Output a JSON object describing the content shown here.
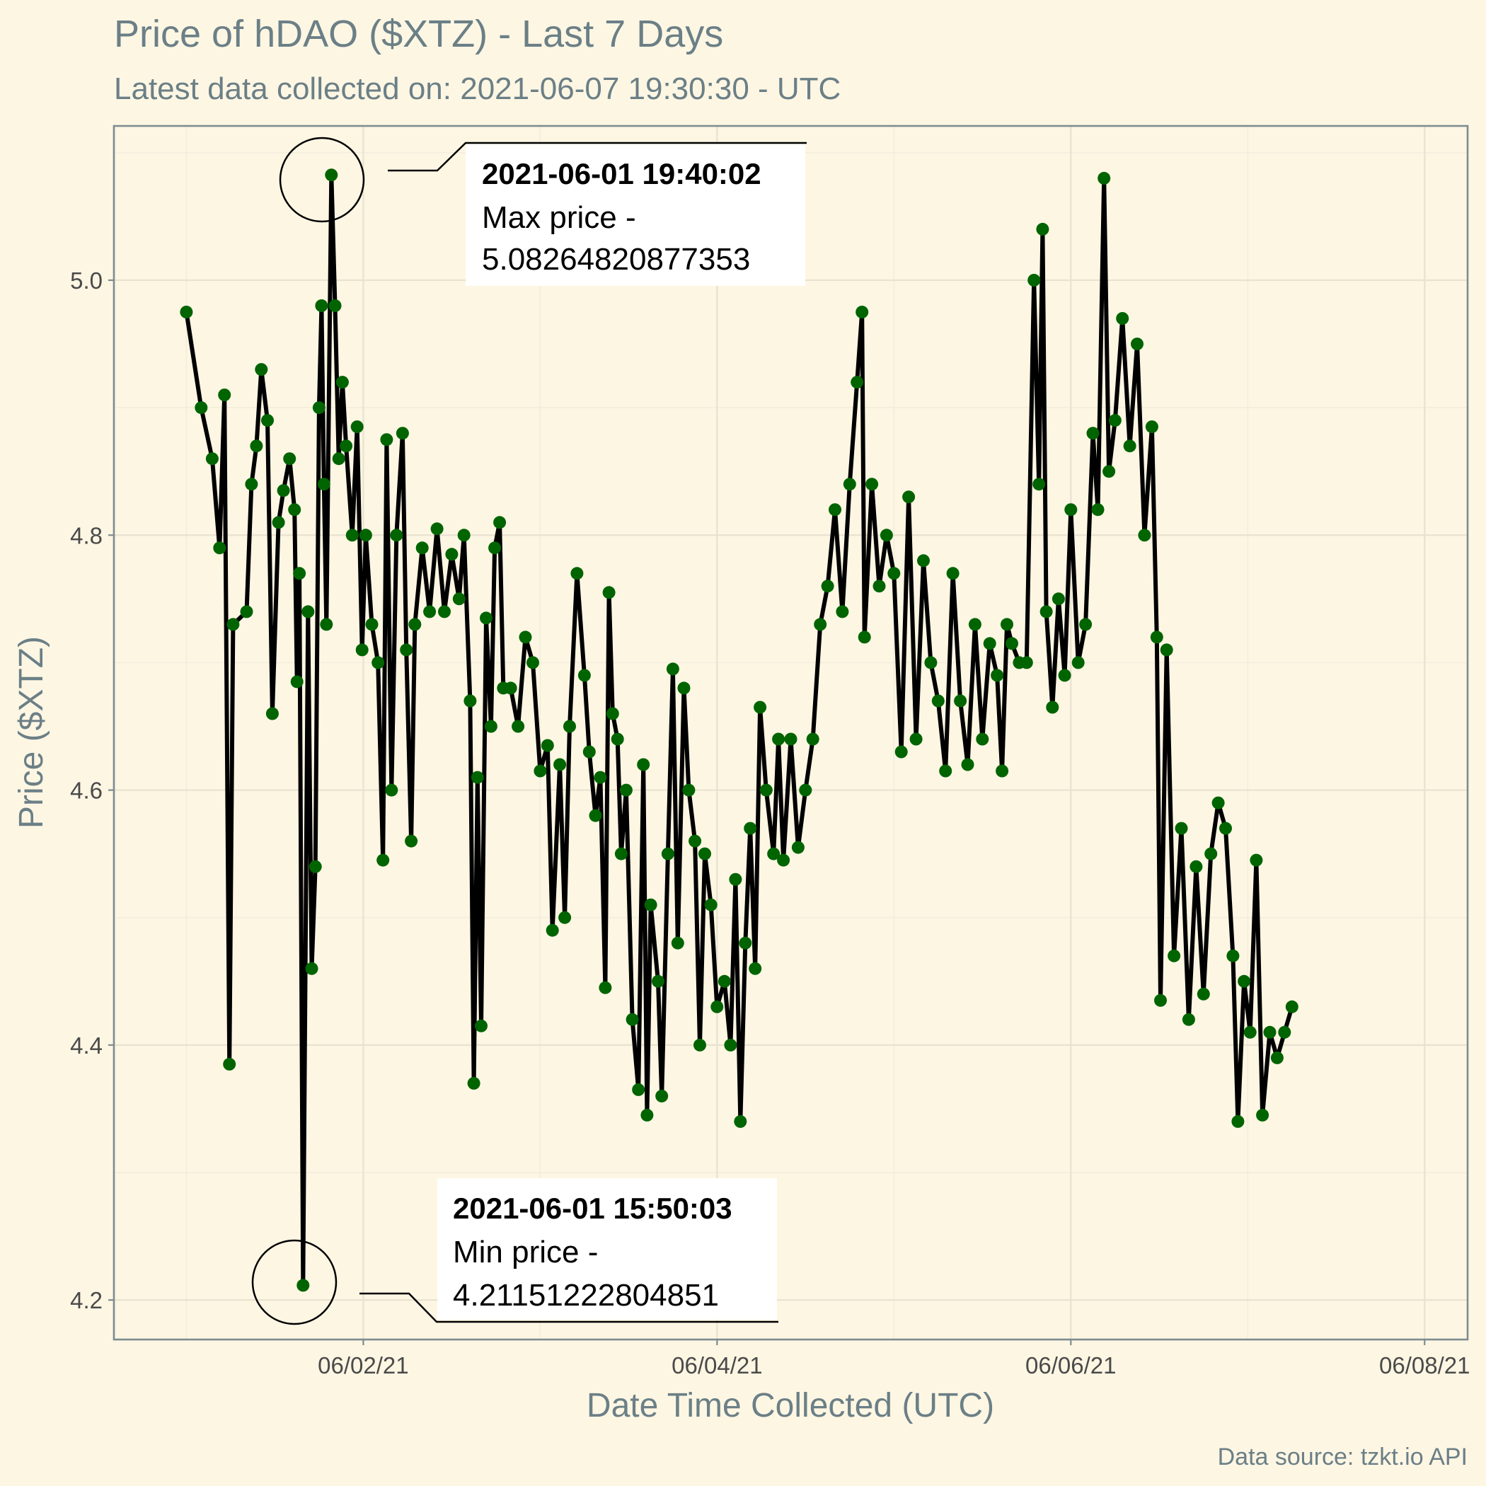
{
  "chart_data": {
    "type": "line",
    "title": "Price of hDAO ($XTZ) - Last 7 Days",
    "subtitle": "Latest data collected on: 2021-06-07 19:30:30  - UTC",
    "xlabel": "Date Time Collected (UTC)",
    "ylabel": "Price ($XTZ)",
    "caption": "Data source: tzkt.io API",
    "x_ticks": [
      {
        "label": "06/02/21",
        "date": "2021-06-02"
      },
      {
        "label": "06/04/21",
        "date": "2021-06-04"
      },
      {
        "label": "06/06/21",
        "date": "2021-06-06"
      },
      {
        "label": "06/08/21",
        "date": "2021-06-08"
      }
    ],
    "y_ticks": [
      "4.2",
      "4.4",
      "4.6",
      "4.8",
      "5.0"
    ],
    "xlim": [
      "2021-05-31T14:10:00",
      "2021-06-08T05:50:00"
    ],
    "ylim": [
      4.169,
      5.121
    ],
    "grid": true,
    "line_color": "#000000",
    "point_color": "#006400",
    "series": [
      {
        "points": [
          [
            "2021-06-01T00:00:00",
            4.975
          ],
          [
            "2021-06-01T02:00:00",
            4.9
          ],
          [
            "2021-06-01T03:30:00",
            4.86
          ],
          [
            "2021-06-01T04:30:00",
            4.79
          ],
          [
            "2021-06-01T05:10:00",
            4.91
          ],
          [
            "2021-06-01T05:50:00",
            4.385
          ],
          [
            "2021-06-01T06:20:00",
            4.73
          ],
          [
            "2021-06-01T08:10:00",
            4.74
          ],
          [
            "2021-06-01T08:50:00",
            4.84
          ],
          [
            "2021-06-01T09:30:00",
            4.87
          ],
          [
            "2021-06-01T10:10:00",
            4.93
          ],
          [
            "2021-06-01T11:00:00",
            4.89
          ],
          [
            "2021-06-01T11:40:00",
            4.66
          ],
          [
            "2021-06-01T12:30:00",
            4.81
          ],
          [
            "2021-06-01T13:10:00",
            4.835
          ],
          [
            "2021-06-01T14:00:00",
            4.86
          ],
          [
            "2021-06-01T14:40:00",
            4.82
          ],
          [
            "2021-06-01T15:00:00",
            4.685
          ],
          [
            "2021-06-01T15:20:00",
            4.77
          ],
          [
            "2021-06-01T15:50:03",
            4.2115
          ],
          [
            "2021-06-01T16:30:00",
            4.74
          ],
          [
            "2021-06-01T17:00:00",
            4.46
          ],
          [
            "2021-06-01T17:30:00",
            4.54
          ],
          [
            "2021-06-01T18:00:00",
            4.9
          ],
          [
            "2021-06-01T18:20:00",
            4.98
          ],
          [
            "2021-06-01T18:40:00",
            4.84
          ],
          [
            "2021-06-01T19:00:00",
            4.73
          ],
          [
            "2021-06-01T19:40:02",
            5.0826
          ],
          [
            "2021-06-01T20:10:00",
            4.98
          ],
          [
            "2021-06-01T20:40:00",
            4.86
          ],
          [
            "2021-06-01T21:10:00",
            4.92
          ],
          [
            "2021-06-01T21:40:00",
            4.87
          ],
          [
            "2021-06-01T22:30:00",
            4.8
          ],
          [
            "2021-06-01T23:10:00",
            4.885
          ],
          [
            "2021-06-01T23:50:00",
            4.71
          ],
          [
            "2021-06-02T00:20:00",
            4.8
          ],
          [
            "2021-06-02T01:10:00",
            4.73
          ],
          [
            "2021-06-02T02:00:00",
            4.7
          ],
          [
            "2021-06-02T02:40:00",
            4.545
          ],
          [
            "2021-06-02T03:10:00",
            4.875
          ],
          [
            "2021-06-02T03:50:00",
            4.6
          ],
          [
            "2021-06-02T04:30:00",
            4.8
          ],
          [
            "2021-06-02T05:20:00",
            4.88
          ],
          [
            "2021-06-02T05:50:00",
            4.71
          ],
          [
            "2021-06-02T06:30:00",
            4.56
          ],
          [
            "2021-06-02T07:00:00",
            4.73
          ],
          [
            "2021-06-02T08:00:00",
            4.79
          ],
          [
            "2021-06-02T09:00:00",
            4.74
          ],
          [
            "2021-06-02T10:00:00",
            4.805
          ],
          [
            "2021-06-02T11:00:00",
            4.74
          ],
          [
            "2021-06-02T12:00:00",
            4.785
          ],
          [
            "2021-06-02T13:00:00",
            4.75
          ],
          [
            "2021-06-02T13:40:00",
            4.8
          ],
          [
            "2021-06-02T14:30:00",
            4.67
          ],
          [
            "2021-06-02T15:00:00",
            4.37
          ],
          [
            "2021-06-02T15:30:00",
            4.61
          ],
          [
            "2021-06-02T16:00:00",
            4.415
          ],
          [
            "2021-06-02T16:40:00",
            4.735
          ],
          [
            "2021-06-02T17:20:00",
            4.65
          ],
          [
            "2021-06-02T17:50:00",
            4.79
          ],
          [
            "2021-06-02T18:30:00",
            4.81
          ],
          [
            "2021-06-02T19:00:00",
            4.68
          ],
          [
            "2021-06-02T20:00:00",
            4.68
          ],
          [
            "2021-06-02T21:00:00",
            4.65
          ],
          [
            "2021-06-02T22:00:00",
            4.72
          ],
          [
            "2021-06-02T23:00:00",
            4.7
          ],
          [
            "2021-06-03T00:00:00",
            4.615
          ],
          [
            "2021-06-03T01:00:00",
            4.635
          ],
          [
            "2021-06-03T01:40:00",
            4.49
          ],
          [
            "2021-06-03T02:40:00",
            4.62
          ],
          [
            "2021-06-03T03:20:00",
            4.5
          ],
          [
            "2021-06-03T04:00:00",
            4.65
          ],
          [
            "2021-06-03T05:00:00",
            4.77
          ],
          [
            "2021-06-03T06:00:00",
            4.69
          ],
          [
            "2021-06-03T06:40:00",
            4.63
          ],
          [
            "2021-06-03T07:30:00",
            4.58
          ],
          [
            "2021-06-03T08:10:00",
            4.61
          ],
          [
            "2021-06-03T08:50:00",
            4.445
          ],
          [
            "2021-06-03T09:20:00",
            4.755
          ],
          [
            "2021-06-03T09:50:00",
            4.66
          ],
          [
            "2021-06-03T10:30:00",
            4.64
          ],
          [
            "2021-06-03T11:00:00",
            4.55
          ],
          [
            "2021-06-03T11:40:00",
            4.6
          ],
          [
            "2021-06-03T12:30:00",
            4.42
          ],
          [
            "2021-06-03T13:20:00",
            4.365
          ],
          [
            "2021-06-03T14:00:00",
            4.62
          ],
          [
            "2021-06-03T14:30:00",
            4.345
          ],
          [
            "2021-06-03T15:00:00",
            4.51
          ],
          [
            "2021-06-03T16:00:00",
            4.45
          ],
          [
            "2021-06-03T16:30:00",
            4.36
          ],
          [
            "2021-06-03T17:20:00",
            4.55
          ],
          [
            "2021-06-03T18:00:00",
            4.695
          ],
          [
            "2021-06-03T18:40:00",
            4.48
          ],
          [
            "2021-06-03T19:30:00",
            4.68
          ],
          [
            "2021-06-03T20:10:00",
            4.6
          ],
          [
            "2021-06-03T21:00:00",
            4.56
          ],
          [
            "2021-06-03T21:40:00",
            4.4
          ],
          [
            "2021-06-03T22:20:00",
            4.55
          ],
          [
            "2021-06-03T23:10:00",
            4.51
          ],
          [
            "2021-06-04T00:00:00",
            4.43
          ],
          [
            "2021-06-04T01:00:00",
            4.45
          ],
          [
            "2021-06-04T01:50:00",
            4.4
          ],
          [
            "2021-06-04T02:30:00",
            4.53
          ],
          [
            "2021-06-04T03:10:00",
            4.34
          ],
          [
            "2021-06-04T03:50:00",
            4.48
          ],
          [
            "2021-06-04T04:30:00",
            4.57
          ],
          [
            "2021-06-04T05:10:00",
            4.46
          ],
          [
            "2021-06-04T05:50:00",
            4.665
          ],
          [
            "2021-06-04T06:40:00",
            4.6
          ],
          [
            "2021-06-04T07:40:00",
            4.55
          ],
          [
            "2021-06-04T08:20:00",
            4.64
          ],
          [
            "2021-06-04T09:00:00",
            4.545
          ],
          [
            "2021-06-04T10:00:00",
            4.64
          ],
          [
            "2021-06-04T11:00:00",
            4.555
          ],
          [
            "2021-06-04T12:00:00",
            4.6
          ],
          [
            "2021-06-04T13:00:00",
            4.64
          ],
          [
            "2021-06-04T14:00:00",
            4.73
          ],
          [
            "2021-06-04T15:00:00",
            4.76
          ],
          [
            "2021-06-04T16:00:00",
            4.82
          ],
          [
            "2021-06-04T17:00:00",
            4.74
          ],
          [
            "2021-06-04T18:00:00",
            4.84
          ],
          [
            "2021-06-04T19:00:00",
            4.92
          ],
          [
            "2021-06-04T19:40:00",
            4.975
          ],
          [
            "2021-06-04T20:00:00",
            4.72
          ],
          [
            "2021-06-04T21:00:00",
            4.84
          ],
          [
            "2021-06-04T22:00:00",
            4.76
          ],
          [
            "2021-06-04T23:00:00",
            4.8
          ],
          [
            "2021-06-05T00:00:00",
            4.77
          ],
          [
            "2021-06-05T01:00:00",
            4.63
          ],
          [
            "2021-06-05T02:00:00",
            4.83
          ],
          [
            "2021-06-05T03:00:00",
            4.64
          ],
          [
            "2021-06-05T04:00:00",
            4.78
          ],
          [
            "2021-06-05T05:00:00",
            4.7
          ],
          [
            "2021-06-05T06:00:00",
            4.67
          ],
          [
            "2021-06-05T07:00:00",
            4.615
          ],
          [
            "2021-06-05T08:00:00",
            4.77
          ],
          [
            "2021-06-05T09:00:00",
            4.67
          ],
          [
            "2021-06-05T10:00:00",
            4.62
          ],
          [
            "2021-06-05T11:00:00",
            4.73
          ],
          [
            "2021-06-05T12:00:00",
            4.64
          ],
          [
            "2021-06-05T13:00:00",
            4.715
          ],
          [
            "2021-06-05T14:00:00",
            4.69
          ],
          [
            "2021-06-05T14:40:00",
            4.615
          ],
          [
            "2021-06-05T15:20:00",
            4.73
          ],
          [
            "2021-06-05T16:00:00",
            4.715
          ],
          [
            "2021-06-05T17:00:00",
            4.7
          ],
          [
            "2021-06-05T18:00:00",
            4.7
          ],
          [
            "2021-06-05T19:00:00",
            5.0
          ],
          [
            "2021-06-05T19:40:00",
            4.84
          ],
          [
            "2021-06-05T20:10:00",
            5.04
          ],
          [
            "2021-06-05T20:40:00",
            4.74
          ],
          [
            "2021-06-05T21:30:00",
            4.665
          ],
          [
            "2021-06-05T22:20:00",
            4.75
          ],
          [
            "2021-06-05T23:10:00",
            4.69
          ],
          [
            "2021-06-06T00:00:00",
            4.82
          ],
          [
            "2021-06-06T01:00:00",
            4.7
          ],
          [
            "2021-06-06T02:00:00",
            4.73
          ],
          [
            "2021-06-06T03:00:00",
            4.88
          ],
          [
            "2021-06-06T03:40:00",
            4.82
          ],
          [
            "2021-06-06T04:30:00",
            5.08
          ],
          [
            "2021-06-06T05:10:00",
            4.85
          ],
          [
            "2021-06-06T06:00:00",
            4.89
          ],
          [
            "2021-06-06T07:00:00",
            4.97
          ],
          [
            "2021-06-06T08:00:00",
            4.87
          ],
          [
            "2021-06-06T09:00:00",
            4.95
          ],
          [
            "2021-06-06T10:00:00",
            4.8
          ],
          [
            "2021-06-06T11:00:00",
            4.885
          ],
          [
            "2021-06-06T11:40:00",
            4.72
          ],
          [
            "2021-06-06T12:10:00",
            4.435
          ],
          [
            "2021-06-06T13:00:00",
            4.71
          ],
          [
            "2021-06-06T14:00:00",
            4.47
          ],
          [
            "2021-06-06T15:00:00",
            4.57
          ],
          [
            "2021-06-06T16:00:00",
            4.42
          ],
          [
            "2021-06-06T17:00:00",
            4.54
          ],
          [
            "2021-06-06T18:00:00",
            4.44
          ],
          [
            "2021-06-06T19:00:00",
            4.55
          ],
          [
            "2021-06-06T20:00:00",
            4.59
          ],
          [
            "2021-06-06T21:00:00",
            4.57
          ],
          [
            "2021-06-06T22:00:00",
            4.47
          ],
          [
            "2021-06-06T22:40:00",
            4.34
          ],
          [
            "2021-06-06T23:30:00",
            4.45
          ],
          [
            "2021-06-07T00:20:00",
            4.41
          ],
          [
            "2021-06-07T01:10:00",
            4.545
          ],
          [
            "2021-06-07T02:00:00",
            4.345
          ],
          [
            "2021-06-07T03:00:00",
            4.41
          ],
          [
            "2021-06-07T04:00:00",
            4.39
          ],
          [
            "2021-06-07T05:00:00",
            4.41
          ],
          [
            "2021-06-07T06:00:00",
            4.43
          ]
        ]
      }
    ],
    "annotations": [
      {
        "kind": "max",
        "timestamp": "2021-06-01 19:40:02",
        "text": "Max price -",
        "value": "5.08264820877353",
        "x": "2021-06-01T19:40:02",
        "y": 5.0826
      },
      {
        "kind": "min",
        "timestamp": "2021-06-01 15:50:03",
        "text": "Min price -",
        "value": "4.21151222804851",
        "x": "2021-06-01T15:50:03",
        "y": 4.2115
      }
    ]
  }
}
